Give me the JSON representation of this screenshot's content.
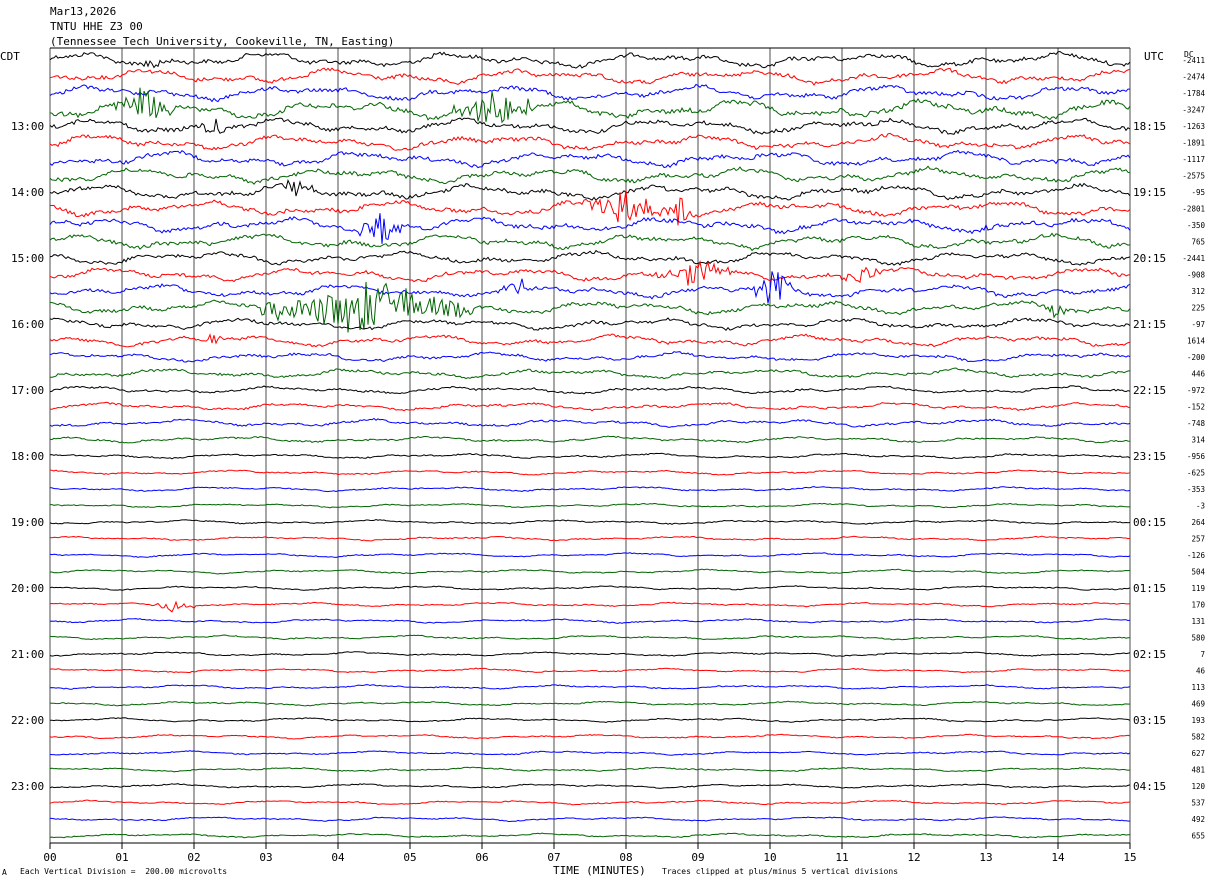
{
  "header": {
    "date": "Mar13,2026",
    "station": "TNTU HHE Z3 00",
    "site": "(Tennessee Tech University, Cookeville, TN, Easting)"
  },
  "footer": {
    "scale_note": "Each Vertical Division =  200.00 microvolts",
    "clip_note": "Traces clipped at plus/minus 5 vertical divisions",
    "mark": "A"
  },
  "chart_data": {
    "type": "line",
    "title": "TNTU HHE Z3 00",
    "xlabel": "TIME (MINUTES)",
    "left_axis_label": "CDT",
    "right_axis_label": "UTC",
    "dc_label": "DC",
    "xlim": [
      0,
      15
    ],
    "x_ticks": [
      "00",
      "01",
      "02",
      "03",
      "04",
      "05",
      "06",
      "07",
      "08",
      "09",
      "10",
      "11",
      "12",
      "13",
      "14",
      "15"
    ],
    "grid": "vertical lines at each minute",
    "trace_colors": [
      "#000000",
      "#ff0000",
      "#0000ff",
      "#006400"
    ],
    "cdt_hours": [
      "13:00",
      "14:00",
      "15:00",
      "16:00",
      "17:00",
      "18:00",
      "19:00",
      "20:00",
      "21:00",
      "22:00",
      "23:00"
    ],
    "utc_hours": [
      "18:15",
      "19:15",
      "20:15",
      "21:15",
      "22:15",
      "23:15",
      "00:15",
      "01:15",
      "02:15",
      "03:15",
      "04:15"
    ],
    "dc_offsets": [
      "-2411",
      "-2474",
      "-1784",
      "-3247",
      "-1263",
      "-1891",
      "-1117",
      "-2575",
      "-95",
      "-2801",
      "-350",
      "765",
      "-2441",
      "-908",
      "312",
      "225",
      "-97",
      "1614",
      "-200",
      "446",
      "-972",
      "-152",
      "-748",
      "314",
      "-956",
      "-625",
      "-353",
      "-3",
      "264",
      "257",
      "-126",
      "504",
      "119",
      "170",
      "131",
      "580",
      "7",
      "46",
      "113",
      "469",
      "193",
      "582",
      "627",
      "481",
      "120",
      "537",
      "492",
      "655"
    ],
    "trace_count": 48,
    "amplitude": [
      4,
      4,
      4,
      5,
      4,
      4,
      4,
      4,
      4,
      4,
      4,
      4,
      3.5,
      3.5,
      3.5,
      3.5,
      3,
      3,
      2.5,
      2.5,
      2,
      2,
      2,
      1.6,
      1.3,
      1.2,
      1.2,
      1.1,
      1.1,
      1.1,
      1.1,
      1.1,
      1.1,
      1.1,
      1.1,
      1.1,
      1.1,
      1.1,
      1.1,
      1.1,
      1.1,
      1.1,
      1.1,
      1.1,
      1.1,
      1.1,
      1.1,
      1.1
    ],
    "events": [
      {
        "trace": 0,
        "start_min": 1.1,
        "end_min": 1.7,
        "amp": 3
      },
      {
        "trace": 3,
        "start_min": 0.9,
        "end_min": 1.7,
        "amp": 8
      },
      {
        "trace": 3,
        "start_min": 5.6,
        "end_min": 6.8,
        "amp": 10
      },
      {
        "trace": 4,
        "start_min": 2.1,
        "end_min": 2.5,
        "amp": 5
      },
      {
        "trace": 8,
        "start_min": 3.1,
        "end_min": 3.7,
        "amp": 5
      },
      {
        "trace": 10,
        "start_min": 4.3,
        "end_min": 4.9,
        "amp": 9
      },
      {
        "trace": 10,
        "start_min": 13.0,
        "end_min": 13.1,
        "amp": 6
      },
      {
        "trace": 9,
        "start_min": 7.4,
        "end_min": 8.6,
        "amp": 9
      },
      {
        "trace": 9,
        "start_min": 8.6,
        "end_min": 8.9,
        "amp": 8
      },
      {
        "trace": 13,
        "start_min": 8.4,
        "end_min": 9.5,
        "amp": 6
      },
      {
        "trace": 13,
        "start_min": 11.0,
        "end_min": 11.6,
        "amp": 5
      },
      {
        "trace": 14,
        "start_min": 6.3,
        "end_min": 6.7,
        "amp": 9
      },
      {
        "trace": 14,
        "start_min": 9.8,
        "end_min": 10.3,
        "amp": 10
      },
      {
        "trace": 15,
        "start_min": 2.9,
        "end_min": 5.9,
        "amp": 12
      },
      {
        "trace": 15,
        "start_min": 13.8,
        "end_min": 14.1,
        "amp": 5
      },
      {
        "trace": 17,
        "start_min": 2.1,
        "end_min": 2.4,
        "amp": 3
      },
      {
        "trace": 33,
        "start_min": 1.4,
        "end_min": 2.0,
        "amp": 3
      }
    ]
  }
}
